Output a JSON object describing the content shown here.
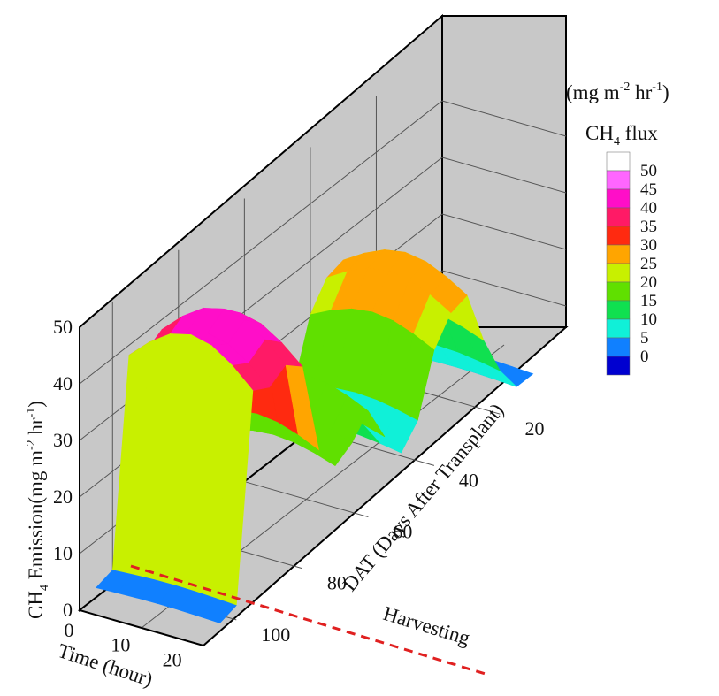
{
  "chart_data": {
    "type": "surface3d",
    "title": "",
    "axes": {
      "z": {
        "label_main": "CH",
        "label_sub": "4",
        "label_rest": " Emission(mg m",
        "label_sup1": "-2",
        "label_mid": " hr",
        "label_sup2": "-1",
        "label_end": ")",
        "range": [
          0,
          50
        ],
        "ticks": [
          "0",
          "10",
          "20",
          "30",
          "40",
          "50"
        ]
      },
      "x": {
        "label": "Time (hour)",
        "range": [
          0,
          24
        ],
        "ticks": [
          "0",
          "10",
          "20"
        ]
      },
      "y": {
        "label": "DAT (Days After Transplant)",
        "range": [
          0,
          110
        ],
        "ticks": [
          "20",
          "40",
          "60",
          "80",
          "100"
        ]
      }
    },
    "ridge_profile": {
      "description_units": "mg m-2 hr-1 by DAT",
      "dat": [
        10,
        15,
        20,
        25,
        30,
        35,
        40,
        45,
        50,
        55,
        60,
        65,
        70,
        75,
        80,
        85,
        90,
        95,
        100,
        105
      ],
      "flux": [
        3,
        3,
        9,
        18,
        30,
        29,
        24,
        12,
        8,
        14,
        22,
        18,
        16,
        22,
        42,
        45,
        43,
        45,
        3,
        2
      ]
    },
    "annotation": {
      "text": "Harvesting"
    },
    "colorbar": {
      "unit_pre": "(mg m",
      "unit_sup1": "-2",
      "unit_mid": " hr",
      "unit_sup2": "-1",
      "unit_post": ")",
      "title_pre": "CH",
      "title_sub": "4",
      "title_post": " flux",
      "levels": [
        "50",
        "45",
        "40",
        "35",
        "30",
        "25",
        "20",
        "15",
        "10",
        "5",
        "0"
      ],
      "colors": [
        "#ffffff",
        "#ff66ff",
        "#ff0ec8",
        "#ff1a66",
        "#ff2a10",
        "#ffa500",
        "#c8f000",
        "#60e000",
        "#10e050",
        "#10f0d8",
        "#1080ff",
        "#0000d0"
      ]
    }
  }
}
